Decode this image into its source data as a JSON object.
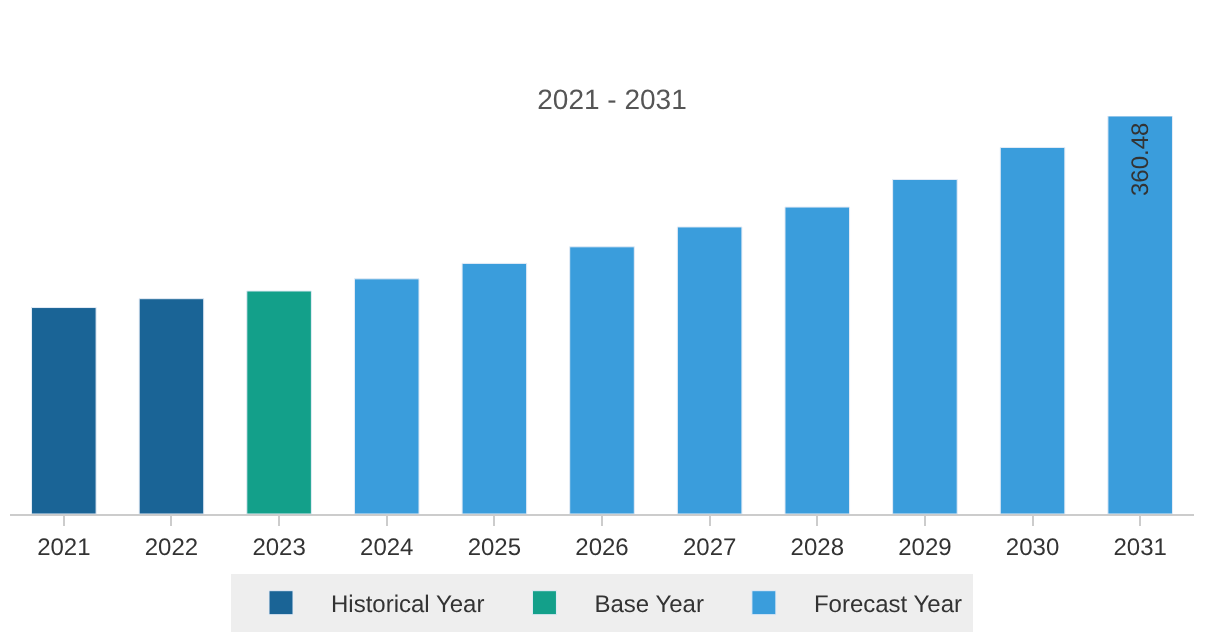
{
  "chart_data": {
    "type": "bar",
    "title": "2021 - 2031",
    "legend": "bottom",
    "categories": [
      "2021",
      "2022",
      "2023",
      "2024",
      "2025",
      "2026",
      "2027",
      "2028",
      "2029",
      "2030",
      "2031"
    ],
    "series": [
      {
        "name": "Historical Year",
        "color": "#1a6496",
        "values": [
          187,
          195,
          null,
          null,
          null,
          null,
          null,
          null,
          null,
          null,
          null
        ]
      },
      {
        "name": "Base Year",
        "color": "#13a08a",
        "values": [
          null,
          null,
          202,
          null,
          null,
          null,
          null,
          null,
          null,
          null,
          null
        ]
      },
      {
        "name": "Forecast Year",
        "color": "#3a9ddc",
        "values": [
          null,
          null,
          null,
          213,
          227,
          242,
          260,
          278,
          303,
          332,
          360.48
        ],
        "value_labels": [
          null,
          null,
          null,
          null,
          null,
          null,
          null,
          null,
          null,
          null,
          "360.48"
        ]
      }
    ]
  }
}
